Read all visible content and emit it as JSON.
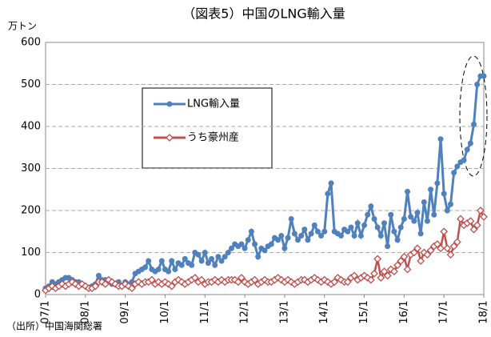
{
  "chart_data": {
    "type": "line",
    "title": "（図表5）中国のLNG輸入量",
    "y_unit": "万トン",
    "source": "（出所）中国海関総署",
    "categories": [
      "07/1",
      null,
      null,
      null,
      null,
      null,
      null,
      null,
      null,
      null,
      null,
      null,
      "08/1",
      null,
      null,
      null,
      null,
      null,
      null,
      null,
      null,
      null,
      null,
      null,
      "09/1",
      null,
      null,
      null,
      null,
      null,
      null,
      null,
      null,
      null,
      null,
      null,
      "10/1",
      null,
      null,
      null,
      null,
      null,
      null,
      null,
      null,
      null,
      null,
      null,
      "11/1",
      null,
      null,
      null,
      null,
      null,
      null,
      null,
      null,
      null,
      null,
      null,
      "12/1",
      null,
      null,
      null,
      null,
      null,
      null,
      null,
      null,
      null,
      null,
      null,
      "13/1",
      null,
      null,
      null,
      null,
      null,
      null,
      null,
      null,
      null,
      null,
      null,
      "14/1",
      null,
      null,
      null,
      null,
      null,
      null,
      null,
      null,
      null,
      null,
      null,
      "15/1",
      null,
      null,
      null,
      null,
      null,
      null,
      null,
      null,
      null,
      null,
      null,
      "16/1",
      null,
      null,
      null,
      null,
      null,
      null,
      null,
      null,
      null,
      null,
      null,
      "17/1",
      null,
      null,
      null,
      null,
      null,
      null,
      null,
      null,
      null,
      null,
      null,
      "18/1"
    ],
    "series": [
      {
        "name": "LNG輸入量",
        "color": "#4f81bd",
        "marker": "circle",
        "values": [
          15,
          20,
          30,
          25,
          30,
          35,
          40,
          40,
          35,
          30,
          30,
          25,
          20,
          15,
          20,
          25,
          45,
          35,
          35,
          30,
          25,
          25,
          30,
          20,
          30,
          25,
          30,
          50,
          55,
          60,
          65,
          80,
          60,
          55,
          60,
          80,
          60,
          55,
          80,
          60,
          75,
          70,
          85,
          75,
          70,
          100,
          95,
          80,
          100,
          75,
          85,
          70,
          90,
          80,
          90,
          100,
          110,
          120,
          115,
          120,
          110,
          130,
          150,
          120,
          90,
          110,
          105,
          115,
          120,
          135,
          130,
          140,
          110,
          135,
          180,
          145,
          130,
          140,
          155,
          130,
          145,
          165,
          150,
          140,
          150,
          240,
          265,
          150,
          145,
          140,
          155,
          150,
          160,
          140,
          170,
          140,
          165,
          190,
          210,
          180,
          160,
          140,
          170,
          115,
          190,
          150,
          130,
          160,
          180,
          245,
          185,
          175,
          195,
          145,
          220,
          175,
          250,
          190,
          265,
          370,
          240,
          200,
          215,
          290,
          305,
          315,
          320,
          345,
          360,
          405,
          500,
          520,
          520
        ]
      },
      {
        "name": "うち豪州産",
        "color": "#c0504d",
        "marker": "diamond",
        "values": [
          10,
          15,
          20,
          15,
          20,
          25,
          20,
          25,
          30,
          25,
          20,
          25,
          20,
          15,
          15,
          20,
          30,
          30,
          25,
          35,
          30,
          25,
          20,
          20,
          25,
          20,
          15,
          25,
          30,
          25,
          30,
          30,
          35,
          25,
          30,
          25,
          30,
          25,
          20,
          30,
          35,
          30,
          25,
          30,
          35,
          40,
          30,
          35,
          25,
          30,
          30,
          35,
          30,
          35,
          30,
          35,
          35,
          35,
          30,
          40,
          30,
          25,
          30,
          35,
          25,
          30,
          35,
          30,
          30,
          35,
          40,
          35,
          30,
          35,
          30,
          25,
          30,
          35,
          35,
          30,
          35,
          40,
          35,
          30,
          35,
          30,
          25,
          30,
          40,
          35,
          30,
          30,
          40,
          45,
          35,
          40,
          45,
          40,
          35,
          50,
          85,
          40,
          55,
          45,
          60,
          55,
          70,
          80,
          90,
          60,
          95,
          100,
          110,
          80,
          100,
          95,
          105,
          115,
          120,
          110,
          150,
          110,
          95,
          115,
          125,
          180,
          165,
          170,
          175,
          155,
          165,
          200,
          185
        ]
      }
    ],
    "ylim": [
      0,
      600
    ],
    "yticks": [
      0,
      100,
      200,
      300,
      400,
      500,
      600
    ],
    "grid": true
  }
}
